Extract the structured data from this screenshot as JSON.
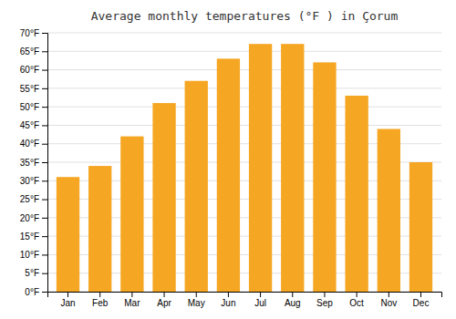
{
  "chart_data": {
    "type": "bar",
    "title": "Average monthly temperatures (°F ) in Çorum",
    "categories": [
      "Jan",
      "Feb",
      "Mar",
      "Apr",
      "May",
      "Jun",
      "Jul",
      "Aug",
      "Sep",
      "Oct",
      "Nov",
      "Dec"
    ],
    "values": [
      31,
      34,
      42,
      51,
      57,
      63,
      67,
      67,
      62,
      53,
      44,
      35
    ],
    "color": "#F5A623",
    "ylim": [
      0,
      70
    ],
    "yticks": [
      {
        "value": 0,
        "label": "0°F"
      },
      {
        "value": 5,
        "label": "5°F"
      },
      {
        "value": 10,
        "label": "10°F"
      },
      {
        "value": 15,
        "label": "15°F"
      },
      {
        "value": 20,
        "label": "20°F"
      },
      {
        "value": 25,
        "label": "25°F"
      },
      {
        "value": 30,
        "label": "30°F"
      },
      {
        "value": 35,
        "label": "35°F"
      },
      {
        "value": 40,
        "label": "40°F"
      },
      {
        "value": 45,
        "label": "45°F"
      },
      {
        "value": 50,
        "label": "50°F"
      },
      {
        "value": 55,
        "label": "55°F"
      },
      {
        "value": 60,
        "label": "60°F"
      },
      {
        "value": 65,
        "label": "65°F"
      },
      {
        "value": 70,
        "label": "70°F"
      }
    ],
    "grid": true
  }
}
